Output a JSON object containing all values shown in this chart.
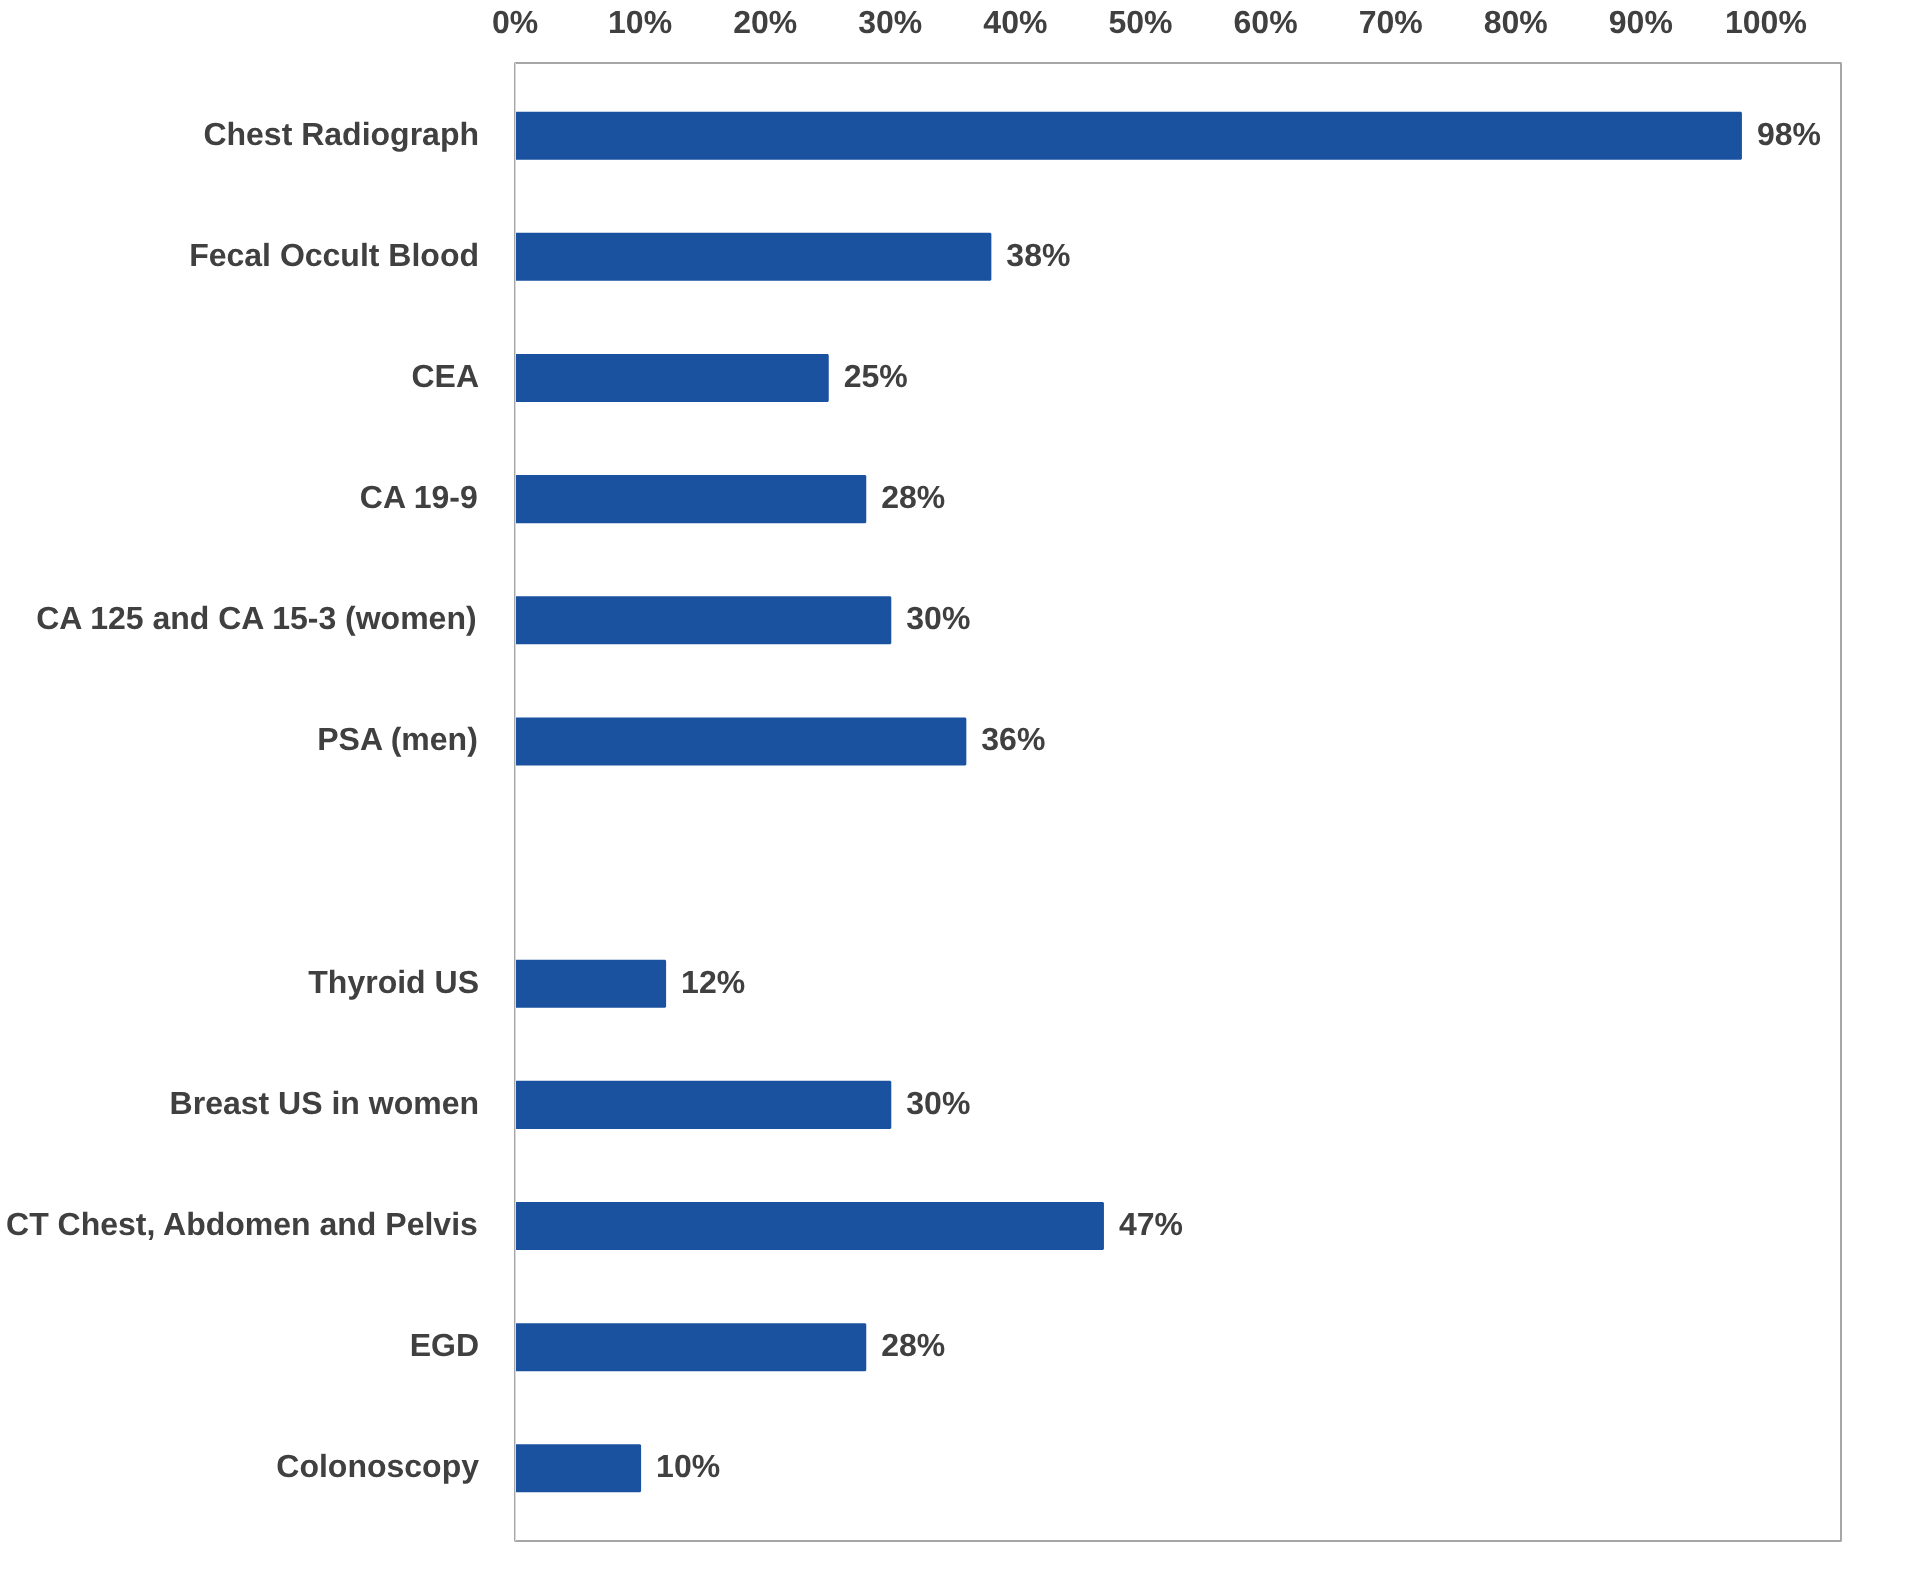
{
  "chart_data": {
    "type": "bar",
    "orientation": "horizontal",
    "categories": [
      "Chest Radiograph",
      "Fecal Occult Blood",
      "CEA",
      "CA 19-9",
      "CA 125 and CA 15-3 (women)",
      "PSA (men)",
      null,
      "Thyroid US",
      "Breast US in women",
      "CT Chest, Abdomen and Pelvis",
      "EGD",
      "Colonoscopy"
    ],
    "values": [
      98,
      38,
      25,
      28,
      30,
      36,
      null,
      12,
      30,
      47,
      28,
      10
    ],
    "value_labels": [
      "98%",
      "38%",
      "25%",
      "28%",
      "30%",
      "36%",
      null,
      "12%",
      "30%",
      "47%",
      "28%",
      "10%"
    ],
    "color": "#1a52a0",
    "xlim": [
      0,
      106
    ],
    "xticks": [
      {
        "value": 0,
        "label": "0%"
      },
      {
        "value": 10,
        "label": "10%"
      },
      {
        "value": 20,
        "label": "20%"
      },
      {
        "value": 30,
        "label": "30%"
      },
      {
        "value": 40,
        "label": "40%"
      },
      {
        "value": 50,
        "label": "50%"
      },
      {
        "value": 60,
        "label": "60%"
      },
      {
        "value": 70,
        "label": "70%"
      },
      {
        "value": 80,
        "label": "80%"
      },
      {
        "value": 90,
        "label": "90%"
      },
      {
        "value": 100,
        "label": "100%"
      }
    ],
    "grid": false
  }
}
